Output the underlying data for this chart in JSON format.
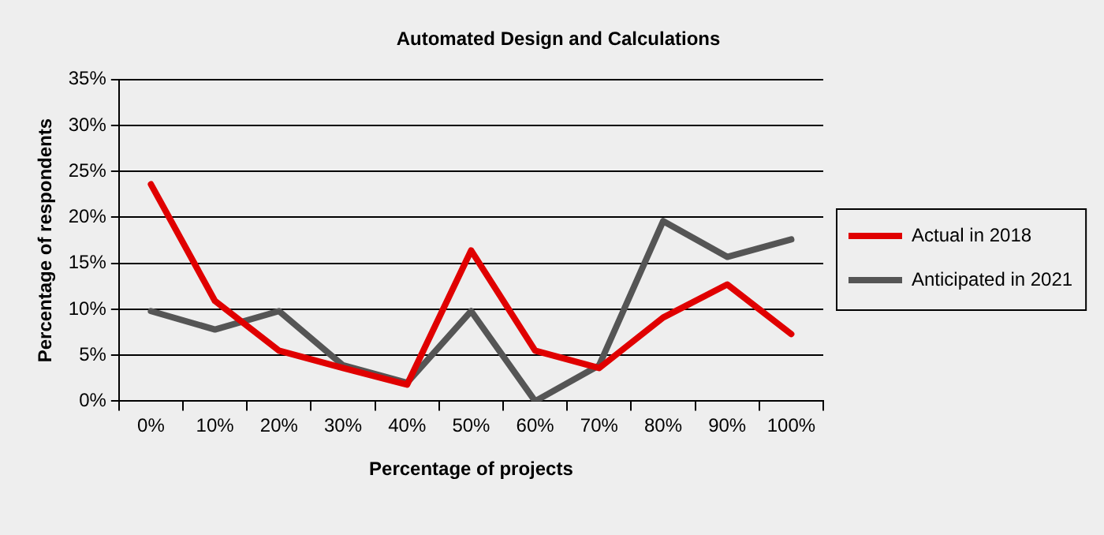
{
  "chart_data": {
    "type": "line",
    "title": "Automated Design and Calculations",
    "xlabel": "Percentage of projects",
    "ylabel": "Percentage of respondents",
    "categories": [
      "0%",
      "10%",
      "20%",
      "30%",
      "40%",
      "50%",
      "60%",
      "70%",
      "80%",
      "90%",
      "100%"
    ],
    "series": [
      {
        "name": "Actual in 2018",
        "color": "#e00000",
        "values": [
          23.6,
          10.9,
          5.5,
          3.6,
          1.8,
          16.4,
          5.5,
          3.6,
          9.1,
          12.7,
          7.3
        ]
      },
      {
        "name": "Anticipated in 2021",
        "color": "#555555",
        "values": [
          9.8,
          7.8,
          9.8,
          3.9,
          2.0,
          9.8,
          0,
          3.9,
          19.6,
          15.7,
          17.6
        ]
      }
    ],
    "ylim": [
      0,
      35
    ],
    "yticks": [
      {
        "value": 0,
        "label": "0%"
      },
      {
        "value": 5,
        "label": "5%"
      },
      {
        "value": 10,
        "label": "10%"
      },
      {
        "value": 15,
        "label": "15%"
      },
      {
        "value": 20,
        "label": "20%"
      },
      {
        "value": 25,
        "label": "25%"
      },
      {
        "value": 30,
        "label": "30%"
      },
      {
        "value": 35,
        "label": "35%"
      }
    ],
    "grid": "y",
    "legend": "right",
    "marker": "none",
    "line_style": "solid"
  }
}
